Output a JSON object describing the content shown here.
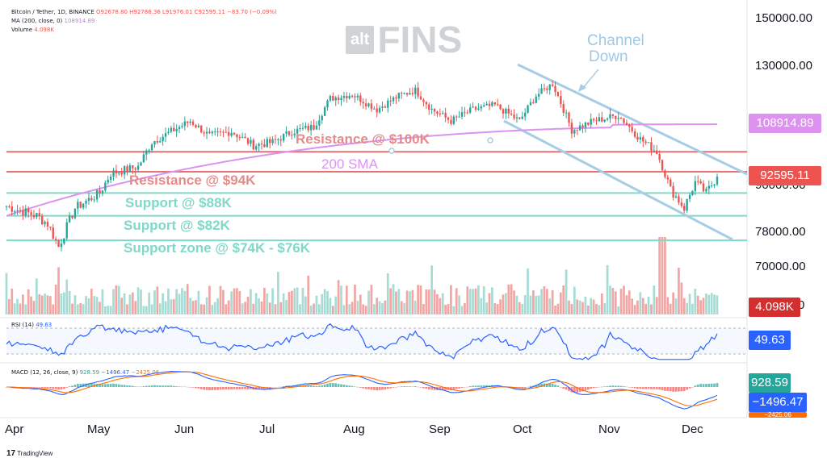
{
  "header": {
    "pair": "Bitcoin / Tether, 1D, BINANCE",
    "ohlc": "O92678.80 H92786.36 L91976.01 C92595.11 −83.70 (−0.09%)",
    "ma": "MA (200, close, 0)",
    "ma_value": "108914.89",
    "volume": "Volume",
    "volume_value": "4.098K",
    "rsi": "RSI (14)",
    "rsi_value": "49.63",
    "macd": "MACD (12, 26, close, 9)",
    "macd_values": [
      "928.59",
      "−1496.47",
      "−2425.06"
    ]
  },
  "brand": {
    "prefix": "alt",
    "name": "FINS"
  },
  "footer": {
    "logo": "TradingView"
  },
  "annotations": {
    "channel": [
      "Channel",
      "Down"
    ],
    "resistance_100k": "Resistance @ $100K",
    "resistance_94k": "Resistance @ $94K",
    "sma": "200 SMA",
    "support_88k": "Support @ $88K",
    "support_82k": "Support @ $82K",
    "support_zone": "Support zone @ $74K - $76K"
  },
  "colors": {
    "up": "#26a69a",
    "down": "#ef5350",
    "vol_up": "#a7dcd5",
    "vol_down": "#f2a6a4",
    "sma": "#dd92f0",
    "resistance": "#e57373",
    "support": "#80d8c8",
    "channel": "#a6cde6",
    "rsi": "#2962ff",
    "macd": "#2962ff",
    "signal": "#ff6d00",
    "tag_blue": "#2962ff"
  },
  "chart_data": {
    "type": "candlestick",
    "title": "Bitcoin / Tether, 1D, BINANCE",
    "x_range": [
      "2024-03-28",
      "2024-12-12"
    ],
    "months": [
      "Apr",
      "May",
      "Jun",
      "Jul",
      "Aug",
      "Sep",
      "Oct",
      "Nov",
      "Dec"
    ],
    "y_ticks": [
      "150000.00",
      "130000.00",
      "90000.00",
      "78000.00",
      "70000.00"
    ],
    "last_close": "92595.11",
    "sma200_last": "108914.89",
    "price_anchors": [
      [
        "2024-03-28",
        84500
      ],
      [
        "2024-04-08",
        82000
      ],
      [
        "2024-04-12",
        80000
      ],
      [
        "2024-04-16",
        74500
      ],
      [
        "2024-04-22",
        84000
      ],
      [
        "2024-05-01",
        88000
      ],
      [
        "2024-05-05",
        93500
      ],
      [
        "2024-05-15",
        95500
      ],
      [
        "2024-05-20",
        103000
      ],
      [
        "2024-05-28",
        107000
      ],
      [
        "2024-06-03",
        110000
      ],
      [
        "2024-06-10",
        105000
      ],
      [
        "2024-06-18",
        106500
      ],
      [
        "2024-06-26",
        102000
      ],
      [
        "2024-07-03",
        103000
      ],
      [
        "2024-07-10",
        106500
      ],
      [
        "2024-07-18",
        108000
      ],
      [
        "2024-07-24",
        118000
      ],
      [
        "2024-08-01",
        119500
      ],
      [
        "2024-08-10",
        114000
      ],
      [
        "2024-08-18",
        119000
      ],
      [
        "2024-08-24",
        121000
      ],
      [
        "2024-08-30",
        114000
      ],
      [
        "2024-09-06",
        110000
      ],
      [
        "2024-09-14",
        114000
      ],
      [
        "2024-09-22",
        115500
      ],
      [
        "2024-10-01",
        110000
      ],
      [
        "2024-10-07",
        119000
      ],
      [
        "2024-10-13",
        123500
      ],
      [
        "2024-10-20",
        107000
      ],
      [
        "2024-10-28",
        110000
      ],
      [
        "2024-11-06",
        112000
      ],
      [
        "2024-11-14",
        104000
      ],
      [
        "2024-11-20",
        100000
      ],
      [
        "2024-11-25",
        89000
      ],
      [
        "2024-11-30",
        84000
      ],
      [
        "2024-12-04",
        91000
      ],
      [
        "2024-12-08",
        88000
      ],
      [
        "2024-12-12",
        92595
      ]
    ],
    "volume_last": "4.098K",
    "levels": {
      "resistance": [
        100000,
        94000
      ],
      "support": [
        88000,
        82000,
        76000
      ]
    },
    "rsi": {
      "period": 14,
      "last": 49.63,
      "upper": 70,
      "lower": 30
    },
    "macd": {
      "fast": 12,
      "slow": 26,
      "signal": 9,
      "macd_last": -1496.47,
      "signal_last": -2425.06,
      "hist_last": 928.59
    }
  }
}
